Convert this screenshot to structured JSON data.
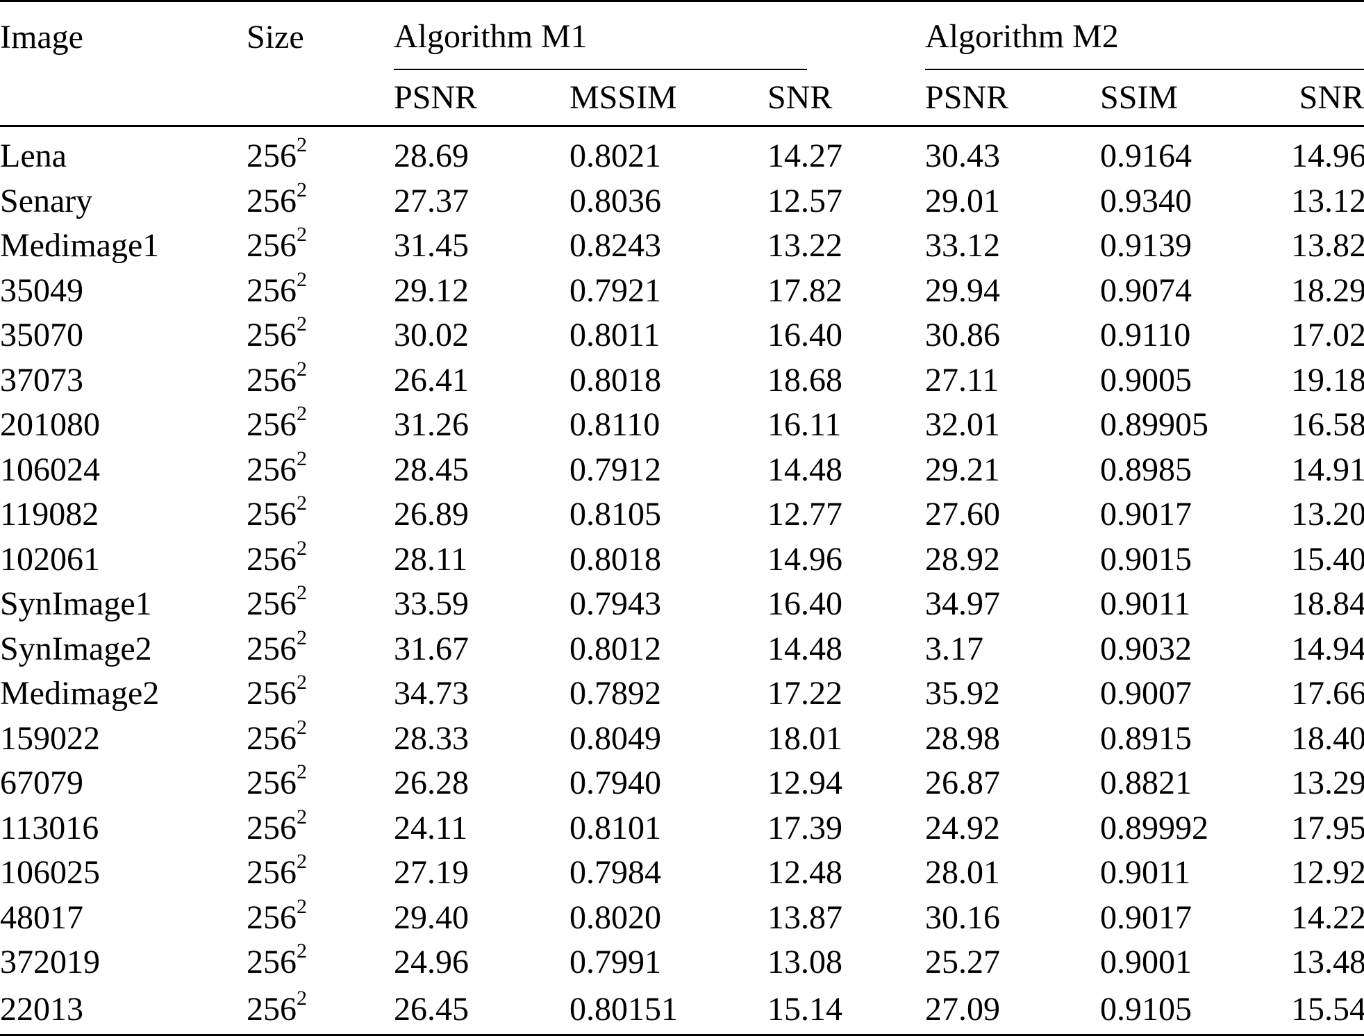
{
  "table": {
    "header": {
      "image": "Image",
      "size": "Size",
      "group_m1": "Algorithm  M1",
      "group_m2": "Algorithm  M2",
      "m1_cols": [
        "PSNR",
        "MSSIM",
        "SNR"
      ],
      "m2_cols": [
        "PSNR",
        "SSIM",
        "SNR"
      ]
    },
    "rows": [
      {
        "image": "Lena",
        "size_base": "256",
        "size_exp": "2",
        "m1_psnr": "28.69",
        "m1_mssim": "0.8021",
        "m1_snr": "14.27",
        "m2_psnr": "30.43",
        "m2_ssim": "0.9164",
        "m2_snr": "14.96"
      },
      {
        "image": "Senary",
        "size_base": "256",
        "size_exp": "2",
        "m1_psnr": "27.37",
        "m1_mssim": "0.8036",
        "m1_snr": "12.57",
        "m2_psnr": "29.01",
        "m2_ssim": "0.9340",
        "m2_snr": "13.12"
      },
      {
        "image": "Medimage1",
        "size_base": "256",
        "size_exp": "2",
        "m1_psnr": "31.45",
        "m1_mssim": "0.8243",
        "m1_snr": "13.22",
        "m2_psnr": "33.12",
        "m2_ssim": "0.9139",
        "m2_snr": "13.82"
      },
      {
        "image": "35049",
        "size_base": "256",
        "size_exp": "2",
        "m1_psnr": "29.12",
        "m1_mssim": "0.7921",
        "m1_snr": "17.82",
        "m2_psnr": "29.94",
        "m2_ssim": "0.9074",
        "m2_snr": "18.29"
      },
      {
        "image": "35070",
        "size_base": "256",
        "size_exp": "2",
        "m1_psnr": "30.02",
        "m1_mssim": "0.8011",
        "m1_snr": "16.40",
        "m2_psnr": "30.86",
        "m2_ssim": "0.9110",
        "m2_snr": "17.02"
      },
      {
        "image": "37073",
        "size_base": "256",
        "size_exp": "2",
        "m1_psnr": "26.41",
        "m1_mssim": "0.8018",
        "m1_snr": "18.68",
        "m2_psnr": "27.11",
        "m2_ssim": "0.9005",
        "m2_snr": "19.18"
      },
      {
        "image": "201080",
        "size_base": "256",
        "size_exp": "2",
        "m1_psnr": "31.26",
        "m1_mssim": "0.8110",
        "m1_snr": "16.11",
        "m2_psnr": "32.01",
        "m2_ssim": "0.89905",
        "m2_snr": "16.58"
      },
      {
        "image": "106024",
        "size_base": "256",
        "size_exp": "2",
        "m1_psnr": "28.45",
        "m1_mssim": "0.7912",
        "m1_snr": "14.48",
        "m2_psnr": "29.21",
        "m2_ssim": "0.8985",
        "m2_snr": "14.91"
      },
      {
        "image": "119082",
        "size_base": "256",
        "size_exp": "2",
        "m1_psnr": "26.89",
        "m1_mssim": "0.8105",
        "m1_snr": "12.77",
        "m2_psnr": "27.60",
        "m2_ssim": "0.9017",
        "m2_snr": "13.20"
      },
      {
        "image": "102061",
        "size_base": "256",
        "size_exp": "2",
        "m1_psnr": "28.11",
        "m1_mssim": "0.8018",
        "m1_snr": "14.96",
        "m2_psnr": "28.92",
        "m2_ssim": "0.9015",
        "m2_snr": "15.40"
      },
      {
        "image": "SynImage1",
        "size_base": "256",
        "size_exp": "2",
        "m1_psnr": "33.59",
        "m1_mssim": "0.7943",
        "m1_snr": "16.40",
        "m2_psnr": "34.97",
        "m2_ssim": "0.9011",
        "m2_snr": "18.84"
      },
      {
        "image": "SynImage2",
        "size_base": "256",
        "size_exp": "2",
        "m1_psnr": "31.67",
        "m1_mssim": "0.8012",
        "m1_snr": "14.48",
        "m2_psnr": "3.17",
        "m2_ssim": "0.9032",
        "m2_snr": "14.94"
      },
      {
        "image": "Medimage2",
        "size_base": "256",
        "size_exp": "2",
        "m1_psnr": "34.73",
        "m1_mssim": "0.7892",
        "m1_snr": "17.22",
        "m2_psnr": "35.92",
        "m2_ssim": "0.9007",
        "m2_snr": "17.66"
      },
      {
        "image": "159022",
        "size_base": "256",
        "size_exp": "2",
        "m1_psnr": "28.33",
        "m1_mssim": "0.8049",
        "m1_snr": "18.01",
        "m2_psnr": "28.98",
        "m2_ssim": "0.8915",
        "m2_snr": "18.40"
      },
      {
        "image": "67079",
        "size_base": "256",
        "size_exp": "2",
        "m1_psnr": "26.28",
        "m1_mssim": "0.7940",
        "m1_snr": "12.94",
        "m2_psnr": "26.87",
        "m2_ssim": "0.8821",
        "m2_snr": "13.29"
      },
      {
        "image": "113016",
        "size_base": "256",
        "size_exp": "2",
        "m1_psnr": "24.11",
        "m1_mssim": "0.8101",
        "m1_snr": "17.39",
        "m2_psnr": "24.92",
        "m2_ssim": "0.89992",
        "m2_snr": "17.95"
      },
      {
        "image": "106025",
        "size_base": "256",
        "size_exp": "2",
        "m1_psnr": "27.19",
        "m1_mssim": "0.7984",
        "m1_snr": "12.48",
        "m2_psnr": "28.01",
        "m2_ssim": "0.9011",
        "m2_snr": "12.92"
      },
      {
        "image": "48017",
        "size_base": "256",
        "size_exp": "2",
        "m1_psnr": "29.40",
        "m1_mssim": "0.8020",
        "m1_snr": "13.87",
        "m2_psnr": "30.16",
        "m2_ssim": "0.9017",
        "m2_snr": "14.22"
      },
      {
        "image": "372019",
        "size_base": "256",
        "size_exp": "2",
        "m1_psnr": "24.96",
        "m1_mssim": "0.7991",
        "m1_snr": "13.08",
        "m2_psnr": "25.27",
        "m2_ssim": "0.9001",
        "m2_snr": "13.48"
      },
      {
        "image": "22013",
        "size_base": "256",
        "size_exp": "2",
        "m1_psnr": "26.45",
        "m1_mssim": "0.80151",
        "m1_snr": "15.14",
        "m2_psnr": "27.09",
        "m2_ssim": "0.9105",
        "m2_snr": "15.54"
      }
    ]
  }
}
